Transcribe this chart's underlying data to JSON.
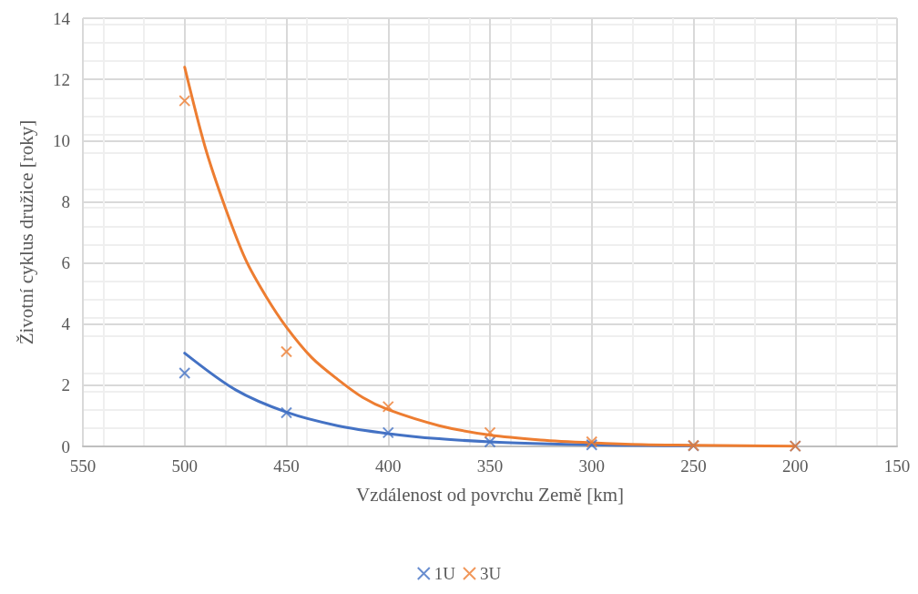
{
  "chart_data": {
    "type": "scatter",
    "xlabel": "Vzdálenost od povrchu Země [km]",
    "ylabel": "Životní cyklus družice [roky]",
    "xlim": [
      550,
      150
    ],
    "xticks": [
      550,
      500,
      450,
      400,
      350,
      300,
      250,
      200,
      150
    ],
    "ylim": [
      0,
      14
    ],
    "yticks": [
      0,
      2,
      4,
      6,
      8,
      10,
      12,
      14
    ],
    "grid": true,
    "legend": "bottom",
    "series": [
      {
        "name": "1U",
        "color": "#4472c4",
        "marker": "cross",
        "x": [
          500,
          450,
          400,
          350,
          300,
          250,
          200
        ],
        "values": [
          2.4,
          1.1,
          0.45,
          0.15,
          0.05,
          0.02,
          0.01
        ]
      },
      {
        "name": "3U",
        "color": "#ed7d31",
        "marker": "cross",
        "x": [
          500,
          450,
          400,
          350,
          300,
          250,
          200
        ],
        "values": [
          11.3,
          3.1,
          1.3,
          0.45,
          0.15,
          0.03,
          0.01
        ]
      },
      {
        "type": "line",
        "color": "#4472c4",
        "marker": "none",
        "x": [
          500,
          475,
          450,
          425,
          400,
          375,
          350,
          325,
          300,
          275,
          250
        ],
        "values": [
          3.05,
          1.85,
          1.12,
          0.68,
          0.42,
          0.25,
          0.15,
          0.09,
          0.05,
          0.03,
          0.02
        ]
      },
      {
        "type": "line",
        "color": "#ed7d31",
        "marker": "none",
        "x": [
          500,
          490,
          480,
          470,
          460,
          450,
          437.5,
          425,
          412.5,
          400,
          375,
          350,
          325,
          300,
          275,
          250,
          225,
          200
        ],
        "values": [
          12.4,
          9.8,
          7.8,
          6.1,
          4.9,
          3.9,
          2.9,
          2.2,
          1.6,
          1.2,
          0.68,
          0.37,
          0.21,
          0.12,
          0.06,
          0.04,
          0.02,
          0.01
        ]
      }
    ]
  }
}
